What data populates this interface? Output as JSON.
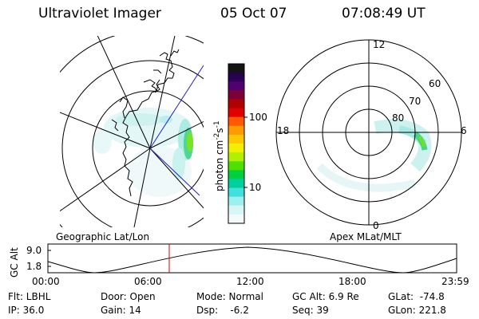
{
  "header": {
    "title": "Ultraviolet Imager",
    "date": "05 Oct 07",
    "time": "07:08:49 UT"
  },
  "colorbar": {
    "unit_label": "photon cm",
    "unit_sup1": "-2",
    "unit_mid": "s",
    "unit_sup2": "-1",
    "ticks": [
      "100",
      "10"
    ],
    "colors": [
      "#141414",
      "#2a0050",
      "#500070",
      "#7a003a",
      "#b00000",
      "#e00000",
      "#ff5a00",
      "#ff9a00",
      "#ffc800",
      "#f0f000",
      "#b0f000",
      "#50e000",
      "#00d040",
      "#00d0a0",
      "#40e0e0",
      "#9ef0f0",
      "#d8f6f6",
      "#f4fafa"
    ]
  },
  "left_map": {
    "caption": "Geographic Lat/Lon"
  },
  "right_map": {
    "caption": "Apex MLat/MLT",
    "mlt_labels": [
      "12",
      "18",
      "6",
      "0"
    ],
    "lat_labels": [
      "60",
      "70",
      "80"
    ]
  },
  "timeline": {
    "ylabel": "GC Alt",
    "ytick_top": "9.0",
    "ytick_bottom": "1.8",
    "xticks": [
      "00:00",
      "06:00",
      "12:00",
      "18:00",
      "23:59"
    ],
    "marker_time": "07:08"
  },
  "info": {
    "flt": "Flt: LBHL",
    "ip": "IP: 36.0",
    "door": "Door: Open",
    "gain": "Gain: 14",
    "mode": "Mode: Normal",
    "dsp": "Dsp:    -6.2",
    "gcalt": "GC Alt: 6.9 Re",
    "seq": "Seq: 39",
    "glat": "GLat:  -74.8",
    "glon": "GLon: 221.8"
  }
}
